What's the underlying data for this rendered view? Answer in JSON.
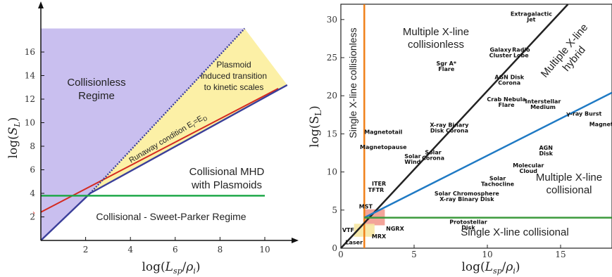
{
  "chart_data": [
    {
      "type": "area",
      "xlim": [
        0,
        11.5
      ],
      "ylim": [
        0,
        18.5
      ],
      "x_ticks": [
        "2",
        "4",
        "6",
        "8",
        "10"
      ],
      "y_ticks": [
        "2",
        "4",
        "6",
        "8",
        "10",
        "12",
        "14",
        "16"
      ],
      "xlabel": "log(L_sp/ρ_i)",
      "ylabel": "log(S_L)",
      "colors": {
        "collisionless": "#c9bfef",
        "plasmoid": "#fcf0a6",
        "boundary": "#3b3f9a",
        "runaway": "#d42a20",
        "critical": "#1fa84a"
      },
      "series": [
        {
          "name": "Runaway condition  E_r=E_D",
          "x": [
            0,
            10.6
          ],
          "y": [
            2.4,
            12.9
          ]
        },
        {
          "x": [
            0,
            2.2
          ],
          "y": [
            0,
            4
          ]
        },
        {
          "x": [
            2.2,
            9.1
          ],
          "y": [
            4,
            18
          ]
        },
        {
          "x": [
            2.2,
            11
          ],
          "y": [
            4,
            13.2
          ]
        },
        {
          "x": [
            0,
            10
          ],
          "y": [
            3.8,
            3.8
          ]
        }
      ],
      "annotations": {
        "collisionless": [
          "Collisionless",
          "Regime"
        ],
        "plasmoid": [
          "Plasmoid",
          "induced transition",
          "to kinetic scales"
        ],
        "mhd": [
          "Collisional MHD",
          "with Plasmoids"
        ],
        "sweet": "Collisional - Sweet-Parker Regime",
        "runaway_prefix": "Runaway condition  E",
        "runaway_sub1": "r",
        "runaway_mid": "=E",
        "runaway_sub2": "D"
      }
    },
    {
      "type": "scatter",
      "xlim": [
        0,
        18.5
      ],
      "ylim": [
        0,
        32
      ],
      "x_ticks": [
        "0",
        "5",
        "10",
        "15"
      ],
      "y_ticks": [
        "0",
        "5",
        "10",
        "15",
        "20",
        "25",
        "30"
      ],
      "xlabel": "log(L_sp/ρ_i)",
      "ylabel": "log(S_L)",
      "colors": {
        "collisionless": "#222222",
        "single_collisionless": "#f0801a",
        "collisional": "#1f7ac4",
        "critical": "#3c9a3c",
        "box_red": "#f3a49a",
        "box_yellow": "#f6e7a2"
      },
      "series": [
        {
          "x": [
            1.6,
            1.6
          ],
          "y": [
            0,
            32
          ]
        },
        {
          "x": [
            0,
            15.5
          ],
          "y": [
            0,
            32
          ]
        },
        {
          "x": [
            1.6,
            18.5
          ],
          "y": [
            4,
            20.4
          ]
        },
        {
          "x": [
            1.6,
            18.5
          ],
          "y": [
            4,
            4
          ]
        }
      ],
      "regions": {
        "single_collisionless": "Single X-line collisionless",
        "multiple_collisionless": [
          "Multiple X-line",
          "collisionless"
        ],
        "hybrid": [
          "Multiple X-line",
          "hybrid"
        ],
        "multiple_collisional": [
          "Multiple X-line",
          "collisional"
        ],
        "single_collisional": "Single X-line collisional"
      },
      "objects": [
        {
          "label": [
            "Extragalactic",
            "Jet"
          ],
          "x": 13.0,
          "y": 30.5
        },
        {
          "label": [
            "Galaxy",
            "Cluster"
          ],
          "x": 10.9,
          "y": 25.8
        },
        {
          "label": [
            "Radio",
            "Lobe"
          ],
          "x": 12.3,
          "y": 25.8
        },
        {
          "label": [
            "Sgr A*",
            "Flare"
          ],
          "x": 7.2,
          "y": 24.0
        },
        {
          "label": [
            "AGN Disk",
            "Corona"
          ],
          "x": 11.5,
          "y": 22.2
        },
        {
          "label": [
            "Crab Nebula",
            "Flare"
          ],
          "x": 11.3,
          "y": 19.3
        },
        {
          "label": [
            "Interstellar",
            "Medium"
          ],
          "x": 13.8,
          "y": 19.0
        },
        {
          "label": [
            "γ-ray Burst"
          ],
          "x": 16.6,
          "y": 17.4
        },
        {
          "label": [
            "Magnetar"
          ],
          "x": 18.0,
          "y": 16.0
        },
        {
          "label": [
            "X-ray Binary",
            "Disk Corona"
          ],
          "x": 7.4,
          "y": 15.9
        },
        {
          "label": [
            "Magnetotail"
          ],
          "x": 2.9,
          "y": 15.0
        },
        {
          "label": [
            "Magnetopause"
          ],
          "x": 2.9,
          "y": 13.0
        },
        {
          "label": [
            "Solar",
            "Wind"
          ],
          "x": 4.9,
          "y": 11.8
        },
        {
          "label": [
            "Solar",
            "Corona"
          ],
          "x": 6.3,
          "y": 12.3
        },
        {
          "label": [
            "AGN",
            "Disk"
          ],
          "x": 14.0,
          "y": 12.9
        },
        {
          "label": [
            "Molecular",
            "Cloud"
          ],
          "x": 12.8,
          "y": 10.6
        },
        {
          "label": [
            "Solar",
            "Tachocline"
          ],
          "x": 10.7,
          "y": 8.9
        },
        {
          "label": [
            "ITER"
          ],
          "x": 2.6,
          "y": 8.2
        },
        {
          "label": [
            "TFTR"
          ],
          "x": 2.4,
          "y": 7.4
        },
        {
          "label": [
            "Solar Chromosphere",
            "X-ray Binary Disk"
          ],
          "x": 8.6,
          "y": 6.9
        },
        {
          "label": [
            "MST"
          ],
          "x": 1.7,
          "y": 5.2
        },
        {
          "label": [
            "Protostellar",
            "Disk"
          ],
          "x": 8.7,
          "y": 3.2
        },
        {
          "label": [
            "NGRX"
          ],
          "x": 3.7,
          "y": 2.3
        },
        {
          "label": [
            "VTF"
          ],
          "x": 0.5,
          "y": 2.1
        },
        {
          "label": [
            "MRX"
          ],
          "x": 2.6,
          "y": 1.3
        },
        {
          "label": [
            "Laser"
          ],
          "x": 0.9,
          "y": 0.5
        }
      ]
    }
  ]
}
